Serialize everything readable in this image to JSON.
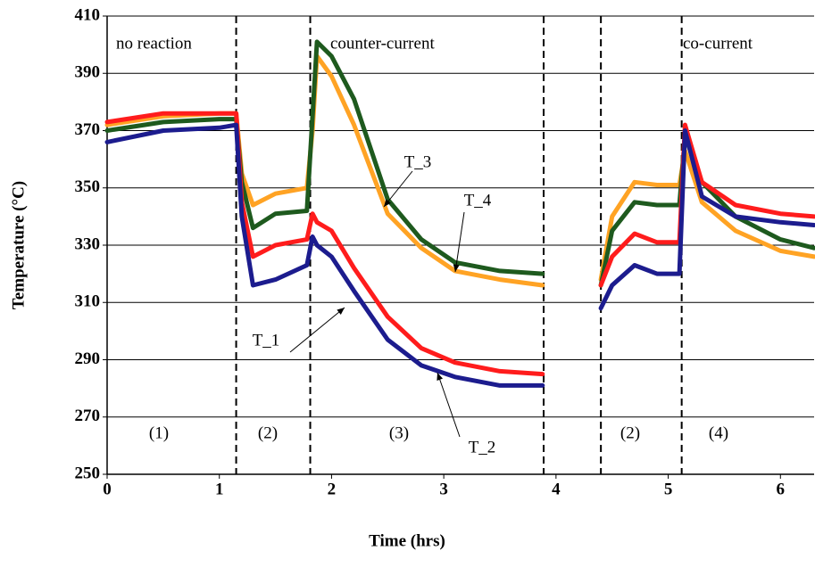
{
  "chart_data": {
    "type": "line",
    "xlabel": "Time (hrs)",
    "ylabel": "Temperature (°C)",
    "xlim": [
      0,
      6.3
    ],
    "xticks": [
      0,
      1,
      2,
      3,
      4,
      5,
      6
    ],
    "ylim": [
      250,
      410
    ],
    "yticks": [
      250,
      270,
      290,
      310,
      330,
      350,
      370,
      390,
      410
    ],
    "grid": true,
    "annotations": [
      "no reaction",
      "counter-current",
      "co-current"
    ],
    "phase_labels": [
      "(1)",
      "(2)",
      "(3)",
      "(2)",
      "(4)"
    ],
    "phase_boundaries": [
      1.15,
      1.81,
      3.89,
      4.4,
      5.12
    ],
    "x": [
      0,
      0.5,
      1.0,
      1.15,
      1.2,
      1.3,
      1.5,
      1.78,
      1.83,
      1.87,
      2.0,
      2.2,
      2.5,
      2.8,
      3.1,
      3.5,
      3.88,
      4.1,
      4.4,
      4.5,
      4.7,
      4.9,
      5.1,
      5.15,
      5.3,
      5.6,
      6.0,
      6.3
    ],
    "series": [
      {
        "name": "T_1",
        "color": "#1c1c8e",
        "values": [
          366,
          370,
          371,
          372,
          340,
          316,
          318,
          323,
          333,
          330,
          326,
          314,
          297,
          288,
          284,
          281,
          281,
          null,
          308,
          316,
          323,
          320,
          320,
          370,
          347,
          340,
          338,
          337
        ]
      },
      {
        "name": "T_2",
        "color": "#ff1c1c",
        "values": [
          373,
          376,
          376,
          376,
          345,
          326,
          330,
          332,
          341,
          338,
          335,
          322,
          305,
          294,
          289,
          286,
          285,
          null,
          316,
          326,
          334,
          331,
          331,
          372,
          352,
          344,
          341,
          340
        ]
      },
      {
        "name": "T_3",
        "color": "#1e5a1e",
        "values": [
          370,
          373,
          374,
          374,
          352,
          336,
          341,
          342,
          375,
          401,
          396,
          381,
          346,
          332,
          324,
          321,
          320,
          null,
          316,
          335,
          345,
          344,
          344,
          368,
          352,
          340,
          332,
          329
        ]
      },
      {
        "name": "T_4",
        "color": "#ffa324",
        "values": [
          372,
          375,
          376,
          376,
          355,
          344,
          348,
          350,
          370,
          396,
          389,
          372,
          341,
          329,
          321,
          318,
          316,
          null,
          318,
          340,
          352,
          351,
          351,
          363,
          345,
          335,
          328,
          326
        ]
      }
    ]
  }
}
